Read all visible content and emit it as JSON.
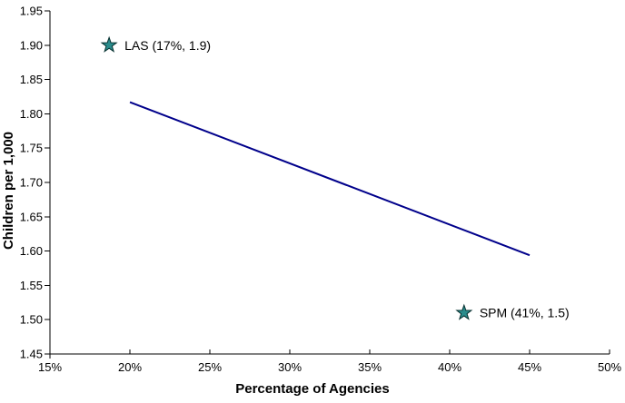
{
  "page": {
    "background": "#ffffff"
  },
  "chart_data": {
    "type": "scatter",
    "title": "",
    "xlabel": "Percentage of Agencies",
    "ylabel": "Children per 1,000",
    "xlim": [
      15,
      50
    ],
    "ylim": [
      1.45,
      1.95
    ],
    "x_ticks": [
      15,
      20,
      25,
      30,
      35,
      40,
      45,
      50
    ],
    "x_tick_labels": [
      "15%",
      "20%",
      "25%",
      "30%",
      "35%",
      "40%",
      "45%",
      "50%"
    ],
    "y_ticks": [
      1.45,
      1.5,
      1.55,
      1.6,
      1.65,
      1.7,
      1.75,
      1.8,
      1.85,
      1.9,
      1.95
    ],
    "y_tick_labels": [
      "1.45",
      "1.50",
      "1.55",
      "1.60",
      "1.65",
      "1.70",
      "1.75",
      "1.80",
      "1.85",
      "1.90",
      "1.95"
    ],
    "grid": false,
    "legend": "none",
    "axis_color": "#000000",
    "trend_line": {
      "x": [
        20,
        45
      ],
      "y": [
        1.817,
        1.594
      ],
      "color": "#00008B",
      "width": 2
    },
    "points": [
      {
        "name": "LAS",
        "label": "LAS (17%, 1.9)",
        "x": 17,
        "y": 1.9,
        "plot_x": 18.7,
        "plot_y": 1.9,
        "marker": "star",
        "fill": "#2A8C8C",
        "stroke": "#06302F"
      },
      {
        "name": "SPM",
        "label": "SPM (41%, 1.5)",
        "x": 41,
        "y": 1.5,
        "plot_x": 40.9,
        "plot_y": 1.51,
        "marker": "star",
        "fill": "#2A8C8C",
        "stroke": "#06302F"
      }
    ]
  }
}
